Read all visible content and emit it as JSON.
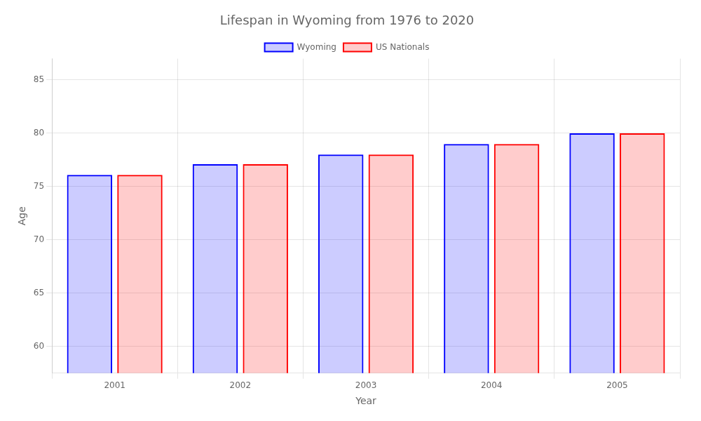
{
  "chart_data": {
    "type": "bar",
    "title": "Lifespan in Wyoming from 1976 to 2020",
    "xlabel": "Year",
    "ylabel": "Age",
    "categories": [
      "2001",
      "2002",
      "2003",
      "2004",
      "2005"
    ],
    "series": [
      {
        "name": "Wyoming",
        "color": "#0000ff",
        "values": [
          76.1,
          77.1,
          78.0,
          79.0,
          80.0
        ]
      },
      {
        "name": "US Nationals",
        "color": "#ff0000",
        "values": [
          76.1,
          77.1,
          78.0,
          79.0,
          80.0
        ]
      }
    ],
    "ylim": [
      57.5,
      87
    ],
    "yticks": [
      60,
      65,
      70,
      75,
      80,
      85
    ],
    "grid": true,
    "legend": "top"
  }
}
